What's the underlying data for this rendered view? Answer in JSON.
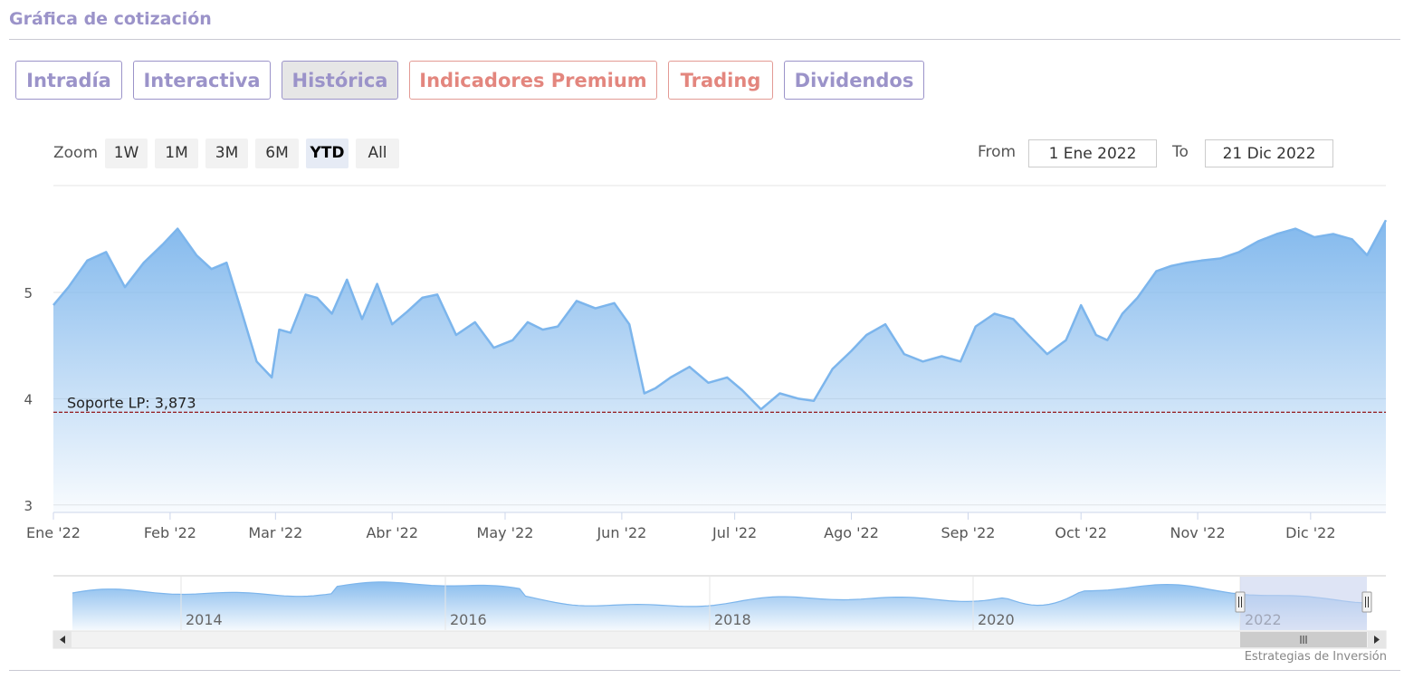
{
  "section_title": "Gráfica de cotización",
  "tabs": [
    {
      "label": "Intradía"
    },
    {
      "label": "Interactiva"
    },
    {
      "label": "Histórica"
    },
    {
      "label": "Indicadores Premium"
    },
    {
      "label": "Trading"
    },
    {
      "label": "Dividendos"
    }
  ],
  "zoom": {
    "label": "Zoom",
    "buttons": [
      "1W",
      "1M",
      "3M",
      "6M",
      "YTD",
      "All"
    ],
    "selected": "YTD"
  },
  "range": {
    "from_label": "From",
    "from_value": "1 Ene 2022",
    "to_label": "To",
    "to_value": "21 Dic 2022"
  },
  "credit": "Estrategias de Inversión",
  "colors": {
    "line": "#7cb5ec",
    "support_line": "#8b0000",
    "navigator_mask": "#c8d2ee"
  },
  "chart_data": {
    "type": "area",
    "x_ticks": [
      "Ene '22",
      "Feb '22",
      "Mar '22",
      "Abr '22",
      "May '22",
      "Jun '22",
      "Jul '22",
      "Ago '22",
      "Sep '22",
      "Oct '22",
      "Nov '22",
      "Dic '22"
    ],
    "y_ticks": [
      "3",
      "4",
      "5"
    ],
    "ylim": [
      2.93,
      5.98
    ],
    "xlim": [
      "2022-01-01",
      "2022-12-21"
    ],
    "grid": true,
    "series": [
      {
        "x": [
          "2022-01-01",
          "2022-01-05",
          "2022-01-10",
          "2022-01-15",
          "2022-01-20",
          "2022-01-25",
          "2022-01-30",
          "2022-02-03",
          "2022-02-08",
          "2022-02-12",
          "2022-02-16",
          "2022-02-20",
          "2022-02-24",
          "2022-02-28",
          "2022-03-02",
          "2022-03-05",
          "2022-03-09",
          "2022-03-12",
          "2022-03-16",
          "2022-03-20",
          "2022-03-24",
          "2022-03-28",
          "2022-04-01",
          "2022-04-05",
          "2022-04-09",
          "2022-04-13",
          "2022-04-18",
          "2022-04-23",
          "2022-04-28",
          "2022-05-03",
          "2022-05-07",
          "2022-05-11",
          "2022-05-15",
          "2022-05-20",
          "2022-05-25",
          "2022-05-30",
          "2022-06-03",
          "2022-06-07",
          "2022-06-10",
          "2022-06-14",
          "2022-06-19",
          "2022-06-24",
          "2022-06-29",
          "2022-07-03",
          "2022-07-08",
          "2022-07-13",
          "2022-07-18",
          "2022-07-22",
          "2022-07-27",
          "2022-08-01",
          "2022-08-05",
          "2022-08-10",
          "2022-08-15",
          "2022-08-20",
          "2022-08-25",
          "2022-08-30",
          "2022-09-03",
          "2022-09-08",
          "2022-09-13",
          "2022-09-17",
          "2022-09-22",
          "2022-09-27",
          "2022-10-01",
          "2022-10-05",
          "2022-10-08",
          "2022-10-12",
          "2022-10-16",
          "2022-10-21",
          "2022-10-25",
          "2022-10-29",
          "2022-11-02",
          "2022-11-07",
          "2022-11-12",
          "2022-11-17",
          "2022-11-22",
          "2022-11-27",
          "2022-12-02",
          "2022-12-07",
          "2022-12-12",
          "2022-12-16",
          "2022-12-21"
        ],
        "values": [
          4.88,
          5.05,
          5.3,
          5.38,
          5.05,
          5.28,
          5.45,
          5.6,
          5.35,
          5.22,
          5.28,
          4.82,
          4.35,
          4.2,
          4.65,
          4.62,
          4.98,
          4.95,
          4.8,
          5.12,
          4.75,
          5.08,
          4.7,
          4.82,
          4.95,
          4.98,
          4.6,
          4.72,
          4.48,
          4.55,
          4.72,
          4.65,
          4.68,
          4.92,
          4.85,
          4.9,
          4.7,
          4.05,
          4.1,
          4.2,
          4.3,
          4.15,
          4.2,
          4.08,
          3.9,
          4.05,
          4.0,
          3.98,
          4.28,
          4.45,
          4.6,
          4.7,
          4.42,
          4.35,
          4.4,
          4.35,
          4.68,
          4.8,
          4.75,
          4.6,
          4.42,
          4.55,
          4.88,
          4.6,
          4.55,
          4.8,
          4.95,
          5.2,
          5.25,
          5.28,
          5.3,
          5.32,
          5.38,
          5.48,
          5.55,
          5.6,
          5.52,
          5.55,
          5.5,
          5.35,
          5.68
        ]
      }
    ],
    "annotations": [
      {
        "label": "Soporte LP: 3,873",
        "value": 3.873
      }
    ],
    "navigator": {
      "x_ticks": [
        "2014",
        "2016",
        "2018",
        "2020",
        "2022"
      ]
    }
  }
}
